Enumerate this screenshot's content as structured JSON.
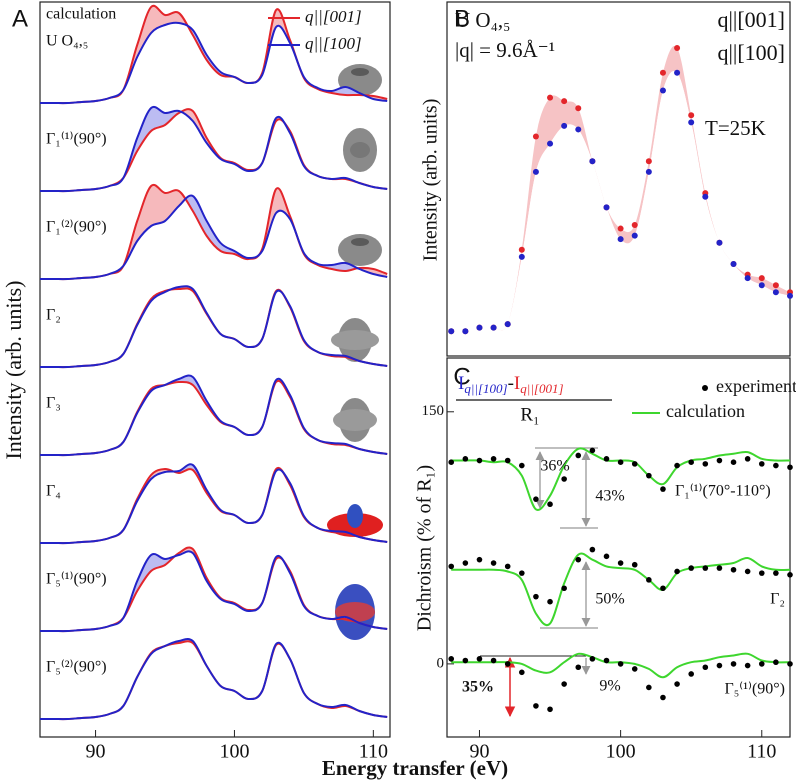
{
  "figure": {
    "xlabel": "Energy transfer (eV)"
  },
  "chart_data": [
    {
      "type": "stacked-line",
      "panel": "A",
      "ylabel": "Intensity (arb. units)",
      "annotations": [
        "U O₄,₅"
      ],
      "legend": [
        {
          "name": "q||[001]",
          "color": "#e3262b"
        },
        {
          "name": "q||[100]",
          "color": "#2323c8"
        }
      ],
      "xlim": [
        86,
        111.2
      ],
      "xticks": [
        90,
        100,
        110
      ],
      "x": [
        86,
        87,
        88,
        89,
        90,
        91,
        92,
        93,
        94,
        95,
        96,
        97,
        98,
        99,
        100,
        101,
        102,
        103,
        104,
        105,
        106,
        107,
        108,
        109,
        110,
        111
      ],
      "rows": [
        {
          "label": "calculation",
          "series": [
            {
              "values": [
                0.02,
                0.02,
                0.02,
                0.03,
                0.04,
                0.07,
                0.15,
                0.6,
                0.98,
                0.9,
                0.92,
                0.7,
                0.45,
                0.3,
                0.28,
                0.22,
                0.32,
                0.95,
                0.65,
                0.27,
                0.16,
                0.12,
                0.1,
                0.1,
                0.09,
                0.06
              ]
            },
            {
              "values": [
                0.02,
                0.02,
                0.02,
                0.03,
                0.04,
                0.07,
                0.15,
                0.48,
                0.72,
                0.8,
                0.82,
                0.75,
                0.5,
                0.33,
                0.28,
                0.22,
                0.3,
                0.78,
                0.62,
                0.28,
                0.17,
                0.14,
                0.18,
                0.12,
                0.06,
                0.04
              ]
            }
          ]
        },
        {
          "label": "Γ₁⁽¹⁾(90°)",
          "series": [
            {
              "values": [
                0.02,
                0.02,
                0.02,
                0.03,
                0.04,
                0.07,
                0.15,
                0.42,
                0.62,
                0.68,
                0.8,
                0.82,
                0.55,
                0.35,
                0.3,
                0.23,
                0.3,
                0.72,
                0.62,
                0.28,
                0.17,
                0.14,
                0.14,
                0.1,
                0.06,
                0.04
              ]
            },
            {
              "values": [
                0.02,
                0.02,
                0.02,
                0.03,
                0.04,
                0.07,
                0.15,
                0.55,
                0.85,
                0.8,
                0.82,
                0.72,
                0.5,
                0.34,
                0.29,
                0.22,
                0.3,
                0.75,
                0.6,
                0.27,
                0.17,
                0.14,
                0.15,
                0.1,
                0.06,
                0.04
              ]
            }
          ]
        },
        {
          "label": "Γ₁⁽²⁾(90°)",
          "series": [
            {
              "values": [
                0.02,
                0.02,
                0.02,
                0.03,
                0.04,
                0.07,
                0.15,
                0.6,
                0.95,
                0.88,
                0.9,
                0.7,
                0.45,
                0.3,
                0.27,
                0.22,
                0.32,
                0.92,
                0.65,
                0.27,
                0.16,
                0.12,
                0.1,
                0.13,
                0.12,
                0.07
              ]
            },
            {
              "values": [
                0.02,
                0.02,
                0.02,
                0.03,
                0.04,
                0.07,
                0.15,
                0.4,
                0.55,
                0.6,
                0.75,
                0.85,
                0.6,
                0.38,
                0.3,
                0.23,
                0.3,
                0.68,
                0.62,
                0.28,
                0.17,
                0.16,
                0.18,
                0.12,
                0.07,
                0.04
              ]
            }
          ]
        },
        {
          "label": "Γ₂",
          "series": [
            {
              "values": [
                0.02,
                0.02,
                0.02,
                0.03,
                0.04,
                0.07,
                0.15,
                0.45,
                0.7,
                0.78,
                0.8,
                0.78,
                0.55,
                0.35,
                0.3,
                0.22,
                0.3,
                0.78,
                0.62,
                0.28,
                0.17,
                0.13,
                0.12,
                0.08,
                0.05,
                0.03
              ]
            },
            {
              "values": [
                0.02,
                0.02,
                0.02,
                0.03,
                0.04,
                0.07,
                0.15,
                0.44,
                0.68,
                0.77,
                0.82,
                0.8,
                0.56,
                0.35,
                0.3,
                0.22,
                0.3,
                0.77,
                0.63,
                0.29,
                0.17,
                0.14,
                0.13,
                0.08,
                0.05,
                0.03
              ]
            }
          ]
        },
        {
          "label": "Γ₃",
          "series": [
            {
              "values": [
                0.02,
                0.02,
                0.02,
                0.03,
                0.04,
                0.07,
                0.15,
                0.45,
                0.68,
                0.72,
                0.75,
                0.72,
                0.52,
                0.35,
                0.3,
                0.22,
                0.3,
                0.75,
                0.6,
                0.28,
                0.17,
                0.13,
                0.12,
                0.08,
                0.05,
                0.03
              ]
            },
            {
              "values": [
                0.02,
                0.02,
                0.02,
                0.03,
                0.04,
                0.07,
                0.15,
                0.44,
                0.66,
                0.72,
                0.78,
                0.8,
                0.56,
                0.36,
                0.3,
                0.22,
                0.3,
                0.77,
                0.62,
                0.29,
                0.17,
                0.14,
                0.13,
                0.08,
                0.05,
                0.03
              ]
            }
          ]
        },
        {
          "label": "Γ₄",
          "series": [
            {
              "values": [
                0.02,
                0.02,
                0.02,
                0.03,
                0.04,
                0.07,
                0.15,
                0.46,
                0.7,
                0.76,
                0.72,
                0.75,
                0.52,
                0.34,
                0.3,
                0.22,
                0.3,
                0.76,
                0.6,
                0.28,
                0.17,
                0.13,
                0.12,
                0.08,
                0.05,
                0.03
              ]
            },
            {
              "values": [
                0.02,
                0.02,
                0.02,
                0.03,
                0.04,
                0.07,
                0.15,
                0.44,
                0.66,
                0.73,
                0.74,
                0.8,
                0.55,
                0.35,
                0.3,
                0.22,
                0.3,
                0.74,
                0.62,
                0.29,
                0.17,
                0.14,
                0.13,
                0.08,
                0.05,
                0.03
              ]
            }
          ]
        },
        {
          "label": "Γ₅⁽¹⁾(90°)",
          "series": [
            {
              "values": [
                0.02,
                0.02,
                0.02,
                0.03,
                0.04,
                0.07,
                0.15,
                0.42,
                0.62,
                0.68,
                0.8,
                0.84,
                0.55,
                0.35,
                0.3,
                0.23,
                0.3,
                0.74,
                0.62,
                0.28,
                0.17,
                0.14,
                0.14,
                0.1,
                0.06,
                0.04
              ]
            },
            {
              "values": [
                0.02,
                0.02,
                0.02,
                0.03,
                0.04,
                0.07,
                0.15,
                0.52,
                0.78,
                0.74,
                0.78,
                0.8,
                0.52,
                0.34,
                0.29,
                0.22,
                0.3,
                0.76,
                0.6,
                0.27,
                0.17,
                0.14,
                0.16,
                0.1,
                0.06,
                0.04
              ]
            }
          ]
        },
        {
          "label": "Γ₅⁽²⁾(90°)",
          "series": [
            {
              "values": [
                0.02,
                0.02,
                0.02,
                0.03,
                0.04,
                0.07,
                0.15,
                0.44,
                0.68,
                0.75,
                0.78,
                0.78,
                0.55,
                0.35,
                0.3,
                0.22,
                0.3,
                0.76,
                0.62,
                0.28,
                0.17,
                0.13,
                0.15,
                0.1,
                0.06,
                0.04
              ]
            },
            {
              "values": [
                0.02,
                0.02,
                0.02,
                0.03,
                0.04,
                0.07,
                0.15,
                0.44,
                0.67,
                0.75,
                0.8,
                0.8,
                0.55,
                0.35,
                0.3,
                0.22,
                0.3,
                0.77,
                0.62,
                0.28,
                0.17,
                0.14,
                0.16,
                0.1,
                0.06,
                0.04
              ]
            }
          ]
        }
      ]
    },
    {
      "type": "scatter",
      "panel": "B",
      "ylabel": "Intensity (arb. units)",
      "annotations": [
        "U O₄,₅",
        "|q| = 9.6Å⁻¹",
        "T=25K"
      ],
      "xlim": [
        87.7,
        112
      ],
      "ylim": [
        0,
        1
      ],
      "x": [
        88,
        89,
        90,
        91,
        92,
        93,
        94,
        95,
        96,
        97,
        98,
        99,
        100,
        101,
        102,
        103,
        104,
        105,
        106,
        107,
        108,
        109,
        110,
        111,
        112
      ],
      "series": [
        {
          "name": "q||[001]",
          "color": "#e3262b",
          "values": [
            0.07,
            0.07,
            0.08,
            0.08,
            0.09,
            0.3,
            0.62,
            0.73,
            0.72,
            0.7,
            0.55,
            0.42,
            0.36,
            0.37,
            0.55,
            0.8,
            0.87,
            0.68,
            0.46,
            0.32,
            0.26,
            0.23,
            0.22,
            0.2,
            0.18
          ]
        },
        {
          "name": "q||[100]",
          "color": "#2323c8",
          "values": [
            0.07,
            0.07,
            0.08,
            0.08,
            0.09,
            0.28,
            0.52,
            0.6,
            0.65,
            0.64,
            0.55,
            0.42,
            0.33,
            0.34,
            0.52,
            0.75,
            0.8,
            0.66,
            0.45,
            0.32,
            0.26,
            0.22,
            0.2,
            0.18,
            0.17
          ]
        }
      ]
    },
    {
      "type": "dichroism",
      "panel": "C",
      "ylabel": "Dichroism (% of R₁)",
      "formula": {
        "term_a": "I",
        "sub_a": "q||[100]",
        "minus": "-",
        "term_b": "I",
        "sub_b": "q||[001]",
        "denominator": "R₁"
      },
      "legend": [
        {
          "name": "experiment",
          "color": "#000000"
        },
        {
          "name": "calculation",
          "color": "#3ed62e"
        }
      ],
      "annotations": [
        "36%",
        "43%",
        "50%",
        "9%",
        "35%"
      ],
      "xlim": [
        87.7,
        112
      ],
      "xticks": [
        90,
        100,
        110
      ],
      "ylim": [
        -43.5,
        182
      ],
      "yticks": [
        0,
        150
      ],
      "x": [
        88,
        89,
        90,
        91,
        92,
        93,
        94,
        95,
        96,
        97,
        98,
        99,
        100,
        101,
        102,
        103,
        104,
        105,
        106,
        107,
        108,
        109,
        110,
        111,
        112
      ],
      "rows": [
        {
          "label": "Γ₁⁽¹⁾(70°-110°)",
          "experiment": [
            120,
            122,
            121,
            122,
            121,
            118,
            98,
            95,
            110,
            124,
            127,
            122,
            120,
            119,
            112,
            104,
            118,
            120,
            119,
            121,
            120,
            122,
            119,
            118,
            117
          ],
          "calculation": [
            121,
            121,
            121,
            120,
            120,
            112,
            92,
            100,
            118,
            128,
            125,
            121,
            121,
            120,
            112,
            107,
            117,
            121,
            122,
            124,
            125,
            126,
            122,
            121,
            121
          ]
        },
        {
          "label": "Γ₂",
          "experiment": [
            58,
            60,
            62,
            60,
            58,
            54,
            40,
            37,
            45,
            62,
            68,
            64,
            60,
            59,
            50,
            45,
            55,
            57,
            57,
            57,
            56,
            55,
            54,
            54,
            53
          ],
          "calculation": [
            56,
            56,
            56,
            56,
            55,
            50,
            30,
            24,
            48,
            65,
            62,
            58,
            57,
            56,
            50,
            44,
            54,
            57,
            58,
            59,
            60,
            63,
            58,
            56,
            56
          ]
        },
        {
          "label": "Γ₅⁽¹⁾(90°)",
          "experiment": [
            3,
            2,
            3,
            2,
            0,
            -5,
            -25,
            -27,
            -12,
            -2,
            3,
            2,
            0,
            -3,
            -14,
            -20,
            -12,
            -6,
            -2,
            -1,
            0,
            -1,
            0,
            1,
            0
          ],
          "calculation": [
            1,
            1,
            1,
            1,
            1,
            0,
            -4,
            -5,
            1,
            6,
            4,
            1,
            1,
            0,
            -3,
            -8,
            -2,
            1,
            2,
            4,
            5,
            6,
            2,
            1,
            1
          ]
        }
      ]
    }
  ]
}
